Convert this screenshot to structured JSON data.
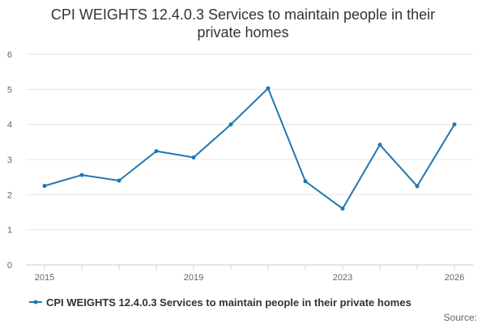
{
  "chart_data": {
    "type": "line",
    "title_lines": [
      "CPI WEIGHTS 12.4.0.3 Services to maintain people in their",
      "private homes"
    ],
    "x": [
      2015,
      2016,
      2017,
      2018,
      2019,
      2020,
      2021,
      2022,
      2023,
      2024,
      2025,
      2026
    ],
    "x_tick_labels": [
      "2015",
      "2019",
      "2023",
      "2026"
    ],
    "x_tick_values": [
      2015,
      2019,
      2023,
      2026
    ],
    "y_ticks": [
      0,
      1,
      2,
      3,
      4,
      5,
      6
    ],
    "ylim": [
      0,
      6
    ],
    "xlim": [
      2015,
      2026
    ],
    "grid": true,
    "legend_position": "bottom",
    "series": [
      {
        "name": "CPI WEIGHTS 12.4.0.3 Services to maintain people in their private homes",
        "values": [
          2.25,
          2.56,
          2.4,
          3.24,
          3.06,
          4.0,
          5.03,
          2.38,
          1.6,
          3.42,
          2.24,
          4.0
        ],
        "color": "#1f77b4"
      }
    ],
    "source_label": "Source:"
  }
}
